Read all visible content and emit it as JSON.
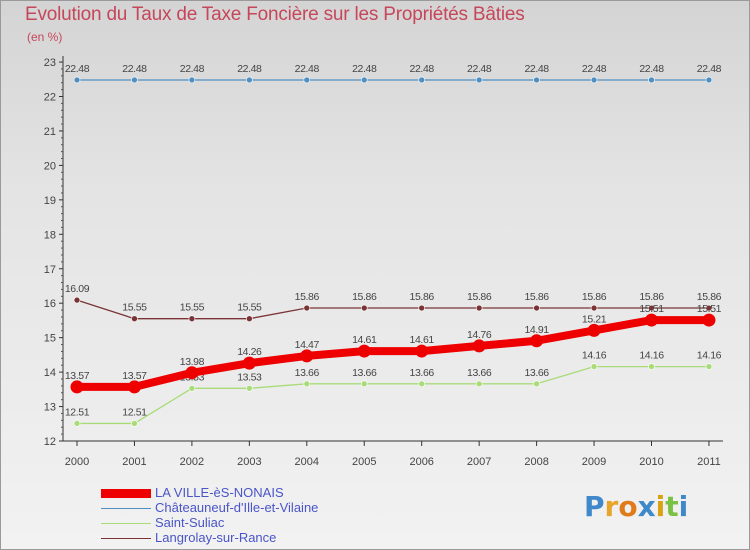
{
  "header": {
    "title": "Evolution du Taux de Taxe Foncière sur les Propriétés Bâties",
    "unit": "(en %)"
  },
  "logo": {
    "text": "Proxiti"
  },
  "chart_data": {
    "type": "line",
    "title": "Evolution du Taux de Taxe Foncière sur les Propriétés Bâties",
    "ylabel": "(en %)",
    "xlabel": "",
    "x": [
      "2000",
      "2001",
      "2002",
      "2003",
      "2004",
      "2005",
      "2006",
      "2007",
      "2008",
      "2009",
      "2010",
      "2011"
    ],
    "ylim": [
      12,
      23
    ],
    "yticks": [
      "12",
      "13",
      "14",
      "15",
      "16",
      "17",
      "18",
      "19",
      "20",
      "21",
      "22",
      "23"
    ],
    "grid": false,
    "legend_position": "bottom-left",
    "series": [
      {
        "name": "Châteauneuf-d'Ille-et-Vilaine",
        "color": "#4f8fc2",
        "values": [
          22.48,
          22.48,
          22.48,
          22.48,
          22.48,
          22.48,
          22.48,
          22.48,
          22.48,
          22.48,
          22.48,
          22.48
        ],
        "labels": [
          "22.48",
          "22.48",
          "22.48",
          "22.48",
          "22.48",
          "22.48",
          "22.48",
          "22.48",
          "22.48",
          "22.48",
          "22.48",
          "22.48"
        ]
      },
      {
        "name": "Saint-Suliac",
        "color": "#a9dc78",
        "values": [
          12.51,
          12.51,
          13.53,
          13.53,
          13.66,
          13.66,
          13.66,
          13.66,
          13.66,
          14.16,
          14.16,
          14.16
        ],
        "labels": [
          "12.51",
          "12.51",
          "13.53",
          "13.53",
          "13.66",
          "13.66",
          "13.66",
          "13.66",
          "13.66",
          "14.16",
          "14.16",
          "14.16"
        ]
      },
      {
        "name": "Langrolay-sur-Rance",
        "color": "#7a3436",
        "values": [
          16.09,
          15.55,
          15.55,
          15.55,
          15.86,
          15.86,
          15.86,
          15.86,
          15.86,
          15.86,
          15.86,
          15.86
        ],
        "labels": [
          "16.09",
          "15.55",
          "15.55",
          "15.55",
          "15.86",
          "15.86",
          "15.86",
          "15.86",
          "15.86",
          "15.86",
          "15.86",
          "15.86"
        ]
      },
      {
        "name": "LA VILLE-èS-NONAIS",
        "color": "#ee0000",
        "values": [
          13.57,
          13.57,
          13.98,
          14.26,
          14.47,
          14.61,
          14.61,
          14.76,
          14.91,
          15.21,
          15.51,
          15.51
        ],
        "labels": [
          "13.57",
          "13.57",
          "13.98",
          "14.26",
          "14.47",
          "14.61",
          "14.61",
          "14.76",
          "14.91",
          "15.21",
          "15.51",
          "15.51"
        ]
      }
    ],
    "legend": [
      "LA VILLE-èS-NONAIS",
      "Châteauneuf-d'Ille-et-Vilaine",
      "Saint-Suliac",
      "Langrolay-sur-Rance"
    ]
  }
}
